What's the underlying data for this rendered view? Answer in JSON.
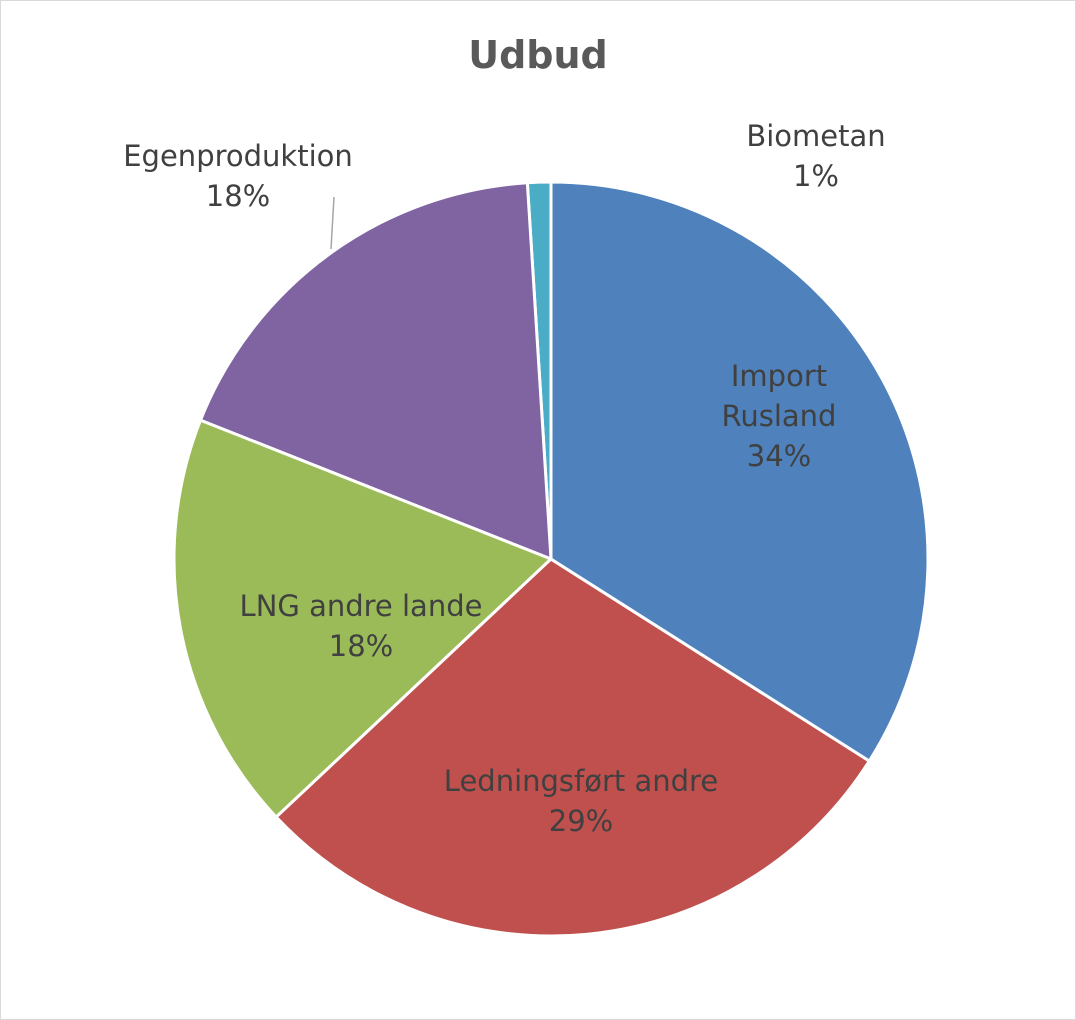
{
  "chart_data": {
    "type": "pie",
    "title": "Udbud",
    "categories": [
      "Import Rusland",
      "Ledningsført andre",
      "LNG andre lande",
      "Egenproduktion",
      "Biometan"
    ],
    "values": [
      34,
      29,
      18,
      18,
      1
    ],
    "value_labels": [
      "34%",
      "29%",
      "18%",
      "18%",
      "1%"
    ],
    "colors": [
      "#4f81bd",
      "#c0504d",
      "#9bbb59",
      "#8064a2",
      "#4bacc6"
    ]
  }
}
